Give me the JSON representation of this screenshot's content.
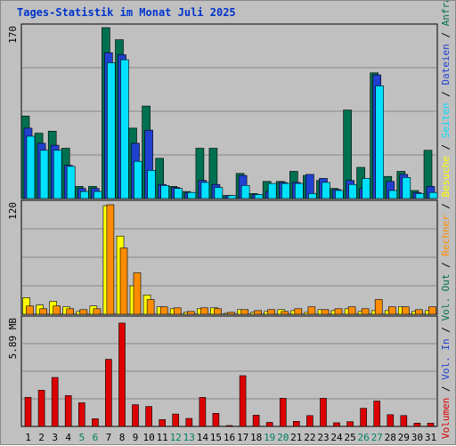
{
  "chart_data": {
    "type": "bar",
    "title": "Tages-Statistik im Monat Juli 2025",
    "days": [
      "1",
      "2",
      "3",
      "4",
      "5",
      "6",
      "7",
      "8",
      "9",
      "10",
      "11",
      "12",
      "13",
      "14",
      "15",
      "16",
      "17",
      "18",
      "19",
      "20",
      "21",
      "22",
      "23",
      "24",
      "25",
      "26",
      "27",
      "28",
      "29",
      "30",
      "31"
    ],
    "weekend_days": [
      5,
      6,
      12,
      13,
      19,
      20,
      26,
      27
    ],
    "panels": [
      {
        "name": "requests",
        "axis_label": "170",
        "ylim": [
          0,
          170
        ],
        "series": [
          {
            "name": "Anfragen",
            "color": "#007050",
            "values": [
              82,
              65,
              67,
              50,
              12,
              12,
              170,
              158,
              70,
              92,
              40,
              12,
              7,
              50,
              50,
              3,
              25,
              5,
              17,
              17,
              27,
              23,
              18,
              10,
              88,
              31,
              125,
              22,
              27,
              8,
              48
            ]
          },
          {
            "name": "Dateien",
            "color": "#2040d0",
            "values": [
              70,
              55,
              53,
              33,
              10,
              10,
              145,
              143,
              55,
              68,
              14,
              11,
              6,
              18,
              14,
              3,
              23,
              4,
              7,
              16,
              16,
              24,
              20,
              9,
              18,
              10,
              123,
              17,
              24,
              6,
              12
            ]
          },
          {
            "name": "Seiten",
            "color": "#00e0ff",
            "values": [
              62,
              48,
              48,
              32,
              7,
              7,
              135,
              138,
              37,
              28,
              13,
              10,
              6,
              16,
              11,
              3,
              13,
              4,
              15,
              15,
              15,
              5,
              16,
              8,
              14,
              20,
              112,
              8,
              21,
              5,
              6
            ]
          }
        ]
      },
      {
        "name": "visits",
        "axis_label": "120",
        "ylim": [
          0,
          120
        ],
        "series": [
          {
            "name": "Besuche",
            "color": "#ffff00",
            "values": [
              18,
              10,
              14,
              8,
              3,
              9,
              118,
              85,
              31,
              21,
              8,
              6,
              2,
              6,
              7,
              1,
              5,
              2,
              3,
              5,
              4,
              2,
              5,
              4,
              6,
              3,
              4,
              4,
              8,
              3,
              4
            ]
          },
          {
            "name": "Rechner",
            "color": "#ff8c00",
            "values": [
              9,
              6,
              9,
              6,
              5,
              6,
              119,
              72,
              45,
              16,
              8,
              7,
              3,
              7,
              6,
              2,
              5,
              4,
              5,
              3,
              6,
              8,
              5,
              6,
              8,
              6,
              16,
              8,
              8,
              5,
              8
            ]
          }
        ]
      },
      {
        "name": "volume",
        "axis_label": "5.89 MB",
        "ylim": [
          0,
          5.89
        ],
        "series": [
          {
            "name": "Volumen",
            "color": "#dd0000",
            "values": [
              1.6,
              2.0,
              2.7,
              1.7,
              1.3,
              0.42,
              3.7,
              5.7,
              1.2,
              1.1,
              0.38,
              0.68,
              0.44,
              1.6,
              0.72,
              0.04,
              2.8,
              0.62,
              0.22,
              1.55,
              0.28,
              0.6,
              1.55,
              0.2,
              0.26,
              1.0,
              1.4,
              0.65,
              0.6,
              0.18,
              0.18
            ]
          }
        ]
      }
    ],
    "legend": [
      {
        "text": "Volumen",
        "color": "#dd0000"
      },
      {
        "text": "Vol. In",
        "color": "#2040d0"
      },
      {
        "text": "Vol. Out",
        "color": "#007050"
      },
      {
        "text": "Rechner",
        "color": "#ff8c00"
      },
      {
        "text": "Besuche",
        "color": "#ffff00"
      },
      {
        "text": "Seiten",
        "color": "#00e0ff"
      },
      {
        "text": "Dateien",
        "color": "#2040d0"
      },
      {
        "text": "Anfragen",
        "color": "#007050"
      }
    ],
    "legend_separator": "/",
    "grid": true,
    "colors": {
      "background": "#c0c0c0",
      "grid": "#888888",
      "axis_text": "#000000",
      "weekend_text": "#008060"
    }
  }
}
